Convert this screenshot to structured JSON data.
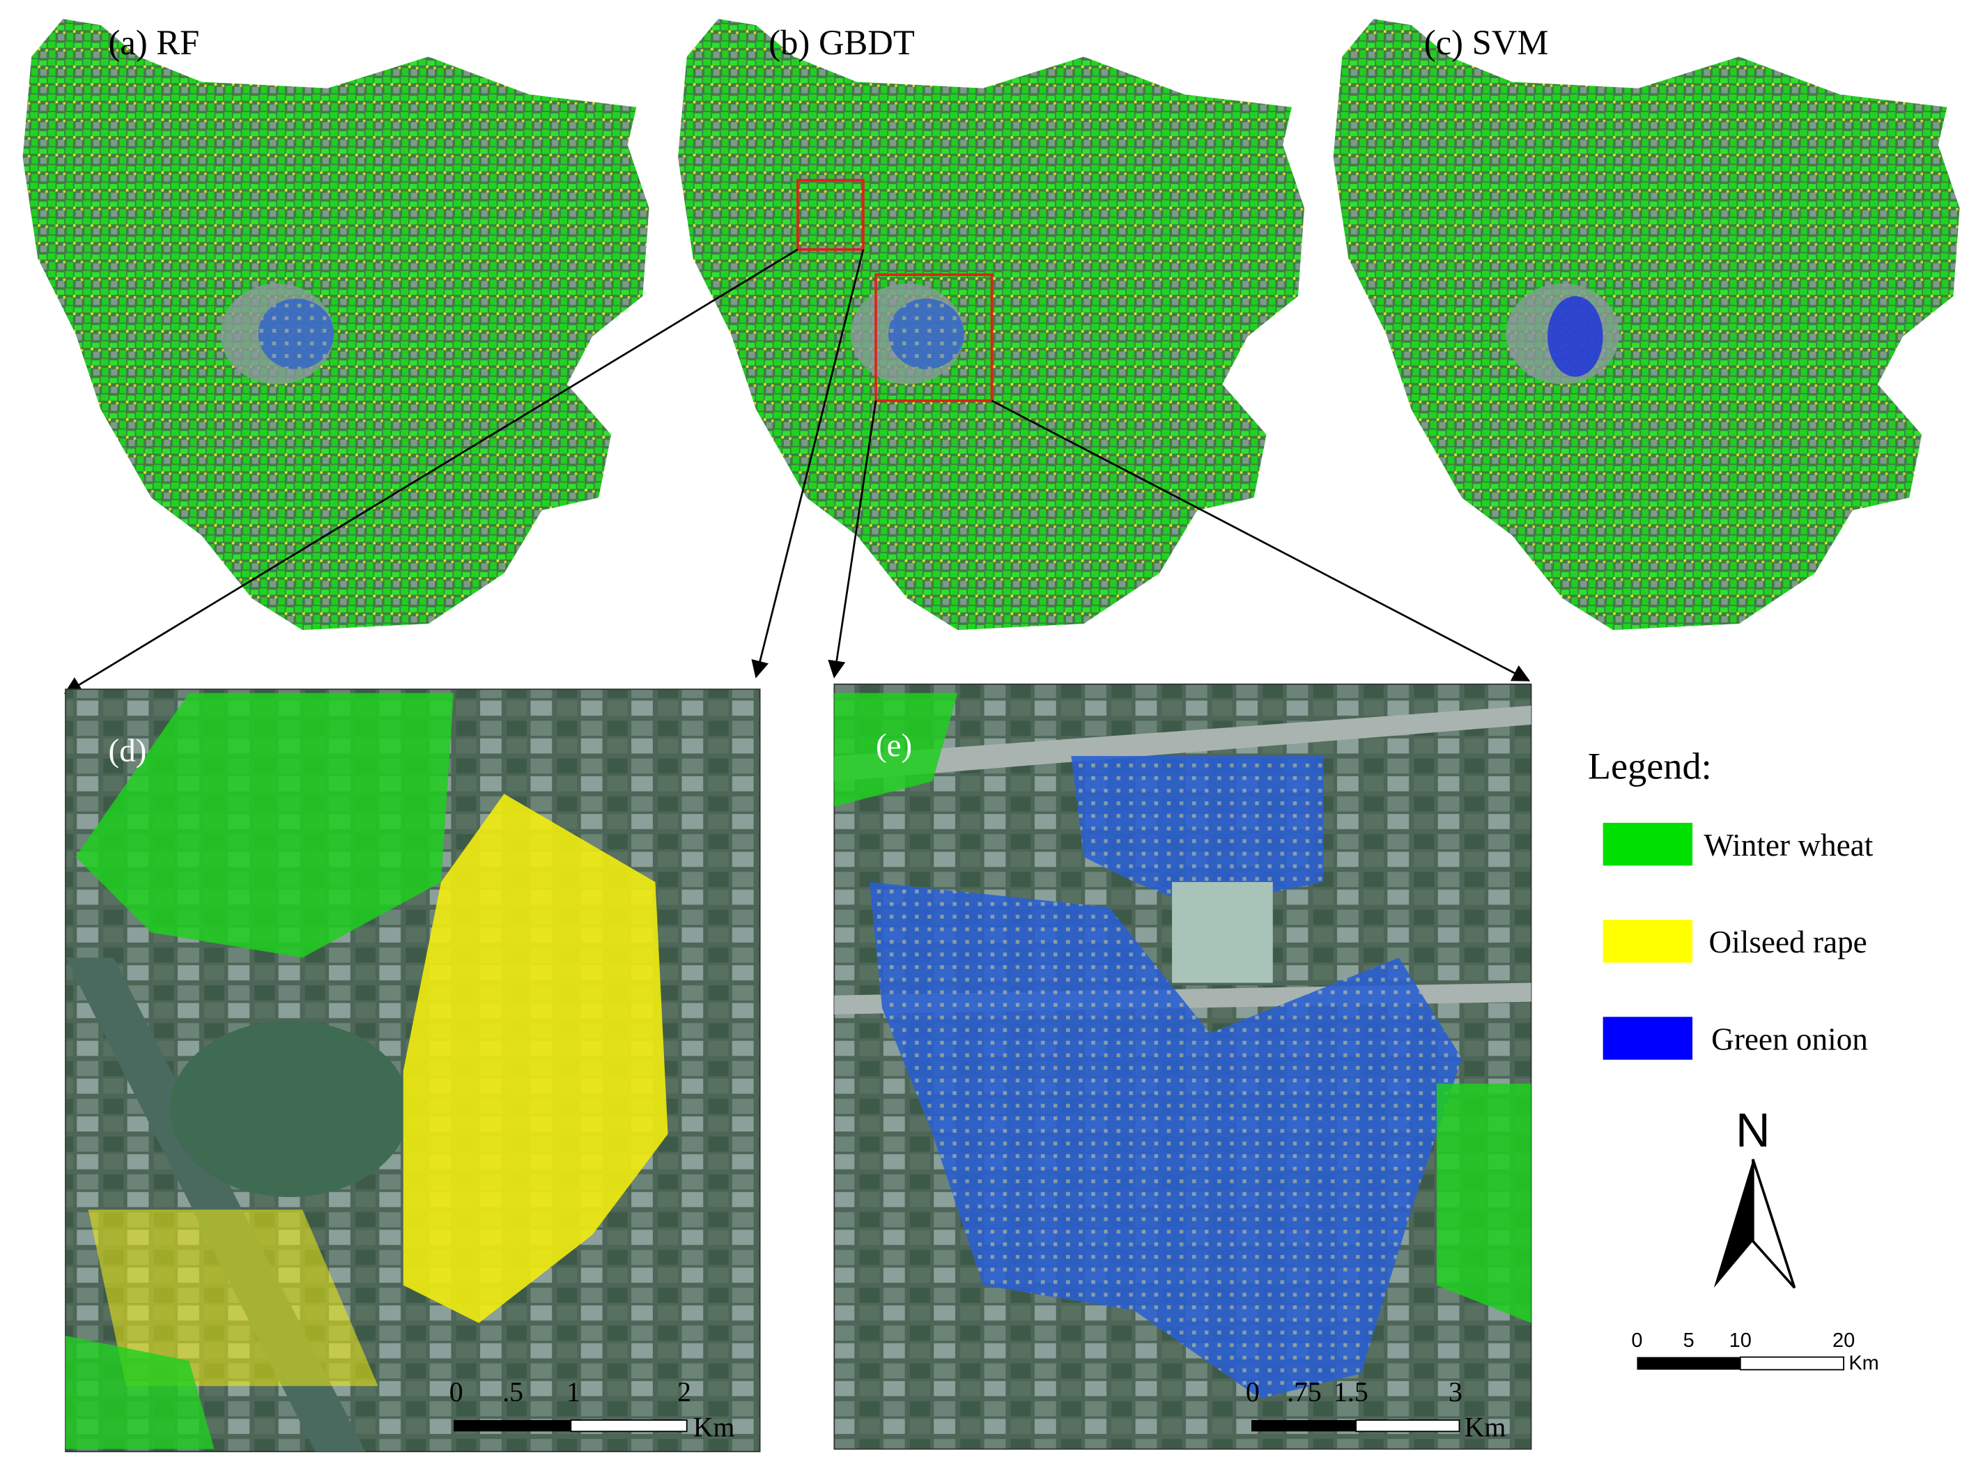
{
  "panels": [
    {
      "label": "(a) RF"
    },
    {
      "label": "(b) GBDT"
    },
    {
      "label": "(c) SVM"
    },
    {
      "label": "(d)",
      "scale_bar": {
        "ticks": [
          "0",
          ".5",
          "1",
          "2"
        ],
        "unit": "Km"
      }
    },
    {
      "label": "(e)",
      "scale_bar": {
        "ticks": [
          "0",
          ".75",
          "1.5",
          "3"
        ],
        "unit": "Km"
      }
    }
  ],
  "legend": {
    "title": "Legend:",
    "items": [
      {
        "label": "Winter wheat",
        "color": "#00e000"
      },
      {
        "label": "Oilseed rape",
        "color": "#ffff00"
      },
      {
        "label": "Green onion",
        "color": "#0000ff"
      }
    ]
  },
  "north_arrow": {
    "label": "N"
  },
  "scale_bar": {
    "ticks": [
      "0",
      "5",
      "10",
      "20"
    ],
    "unit": "Km"
  }
}
